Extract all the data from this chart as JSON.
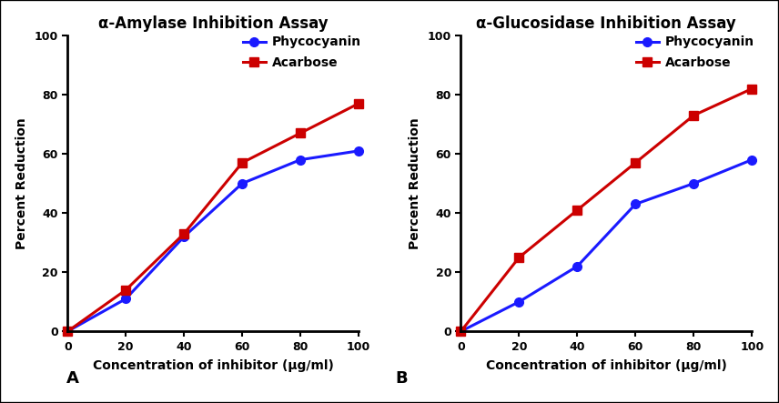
{
  "panel_A": {
    "title": "α-Amylase Inhibition Assay",
    "xlabel": "Concentration of inhibitor (μg/ml)",
    "ylabel": "Percent Reduction",
    "x": [
      0,
      20,
      40,
      60,
      80,
      100
    ],
    "phycocyanin_y": [
      0,
      11,
      32,
      50,
      58,
      61
    ],
    "acarbose_y": [
      0,
      14,
      33,
      57,
      67,
      77
    ],
    "panel_label": "A"
  },
  "panel_B": {
    "title": "α-Glucosidase Inhibition Assay",
    "xlabel": "Concentration of inhibitor (μg/ml)",
    "ylabel": "Percent Reduction",
    "x": [
      0,
      20,
      40,
      60,
      80,
      100
    ],
    "phycocyanin_y": [
      0,
      10,
      22,
      43,
      50,
      58
    ],
    "acarbose_y": [
      0,
      25,
      41,
      57,
      73,
      82
    ],
    "panel_label": "B"
  },
  "phycocyanin_color": "#1a1aff",
  "acarbose_color": "#cc0000",
  "phycocyanin_label": "Phycocyanin",
  "acarbose_label": "Acarbose",
  "ylim": [
    0,
    100
  ],
  "xlim": [
    0,
    100
  ],
  "xticks": [
    0,
    20,
    40,
    60,
    80,
    100
  ],
  "yticks": [
    0,
    20,
    40,
    60,
    80,
    100
  ],
  "bg_color": "#ffffff",
  "plot_bg_color": "#ffffff",
  "linewidth": 2.2,
  "markersize": 7,
  "title_fontsize": 12,
  "label_fontsize": 10,
  "tick_fontsize": 9,
  "legend_fontsize": 10,
  "spine_linewidth": 2.0
}
